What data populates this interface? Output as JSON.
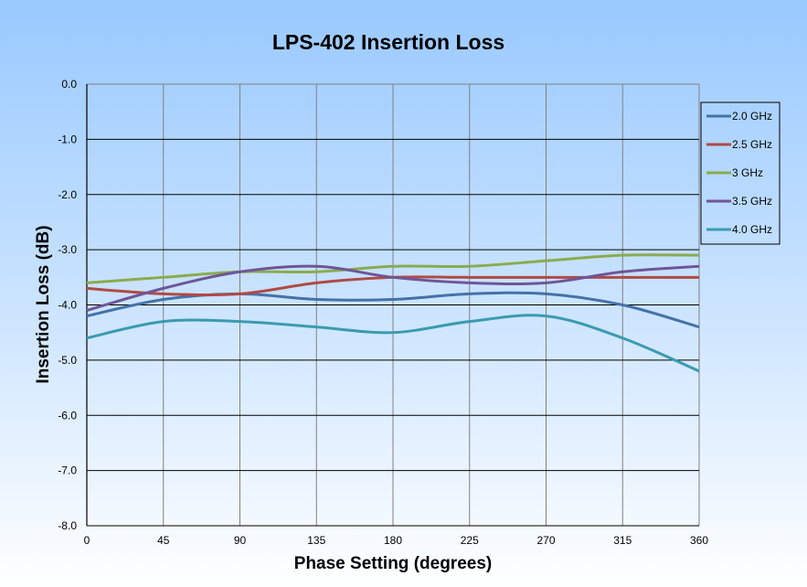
{
  "chart_data": {
    "type": "line",
    "title": "LPS-402  Insertion Loss",
    "xlabel": "Phase Setting (degrees)",
    "ylabel": "Insertion Loss (dB)",
    "x": [
      0,
      45,
      90,
      135,
      180,
      225,
      270,
      315,
      360
    ],
    "xticks": [
      "0",
      "45",
      "90",
      "135",
      "180",
      "225",
      "270",
      "315",
      "360"
    ],
    "yticks": [
      "0.0",
      "-1.0",
      "-2.0",
      "-3.0",
      "-4.0",
      "-5.0",
      "-6.0",
      "-7.0",
      "-8.0"
    ],
    "xlim": [
      0,
      360
    ],
    "ylim": [
      -8.0,
      0.0
    ],
    "grid": true,
    "legend_position": "right",
    "series": [
      {
        "name": "2.0 GHz",
        "color": "#4472a8",
        "values": [
          -4.2,
          -3.9,
          -3.8,
          -3.9,
          -3.9,
          -3.8,
          -3.8,
          -4.0,
          -4.4
        ]
      },
      {
        "name": "2.5 GHz",
        "color": "#b04a45",
        "values": [
          -3.7,
          -3.8,
          -3.8,
          -3.6,
          -3.5,
          -3.5,
          -3.5,
          -3.5,
          -3.5
        ]
      },
      {
        "name": "3 GHz",
        "color": "#8aab4f",
        "values": [
          -3.6,
          -3.5,
          -3.4,
          -3.4,
          -3.3,
          -3.3,
          -3.2,
          -3.1,
          -3.1
        ]
      },
      {
        "name": "3.5 GHz",
        "color": "#6f5598",
        "values": [
          -4.1,
          -3.7,
          -3.4,
          -3.3,
          -3.5,
          -3.6,
          -3.6,
          -3.4,
          -3.3
        ]
      },
      {
        "name": "4.0 GHz",
        "color": "#3a9bb0",
        "values": [
          -4.6,
          -4.3,
          -4.3,
          -4.4,
          -4.5,
          -4.3,
          -4.2,
          -4.6,
          -5.2
        ]
      }
    ]
  }
}
